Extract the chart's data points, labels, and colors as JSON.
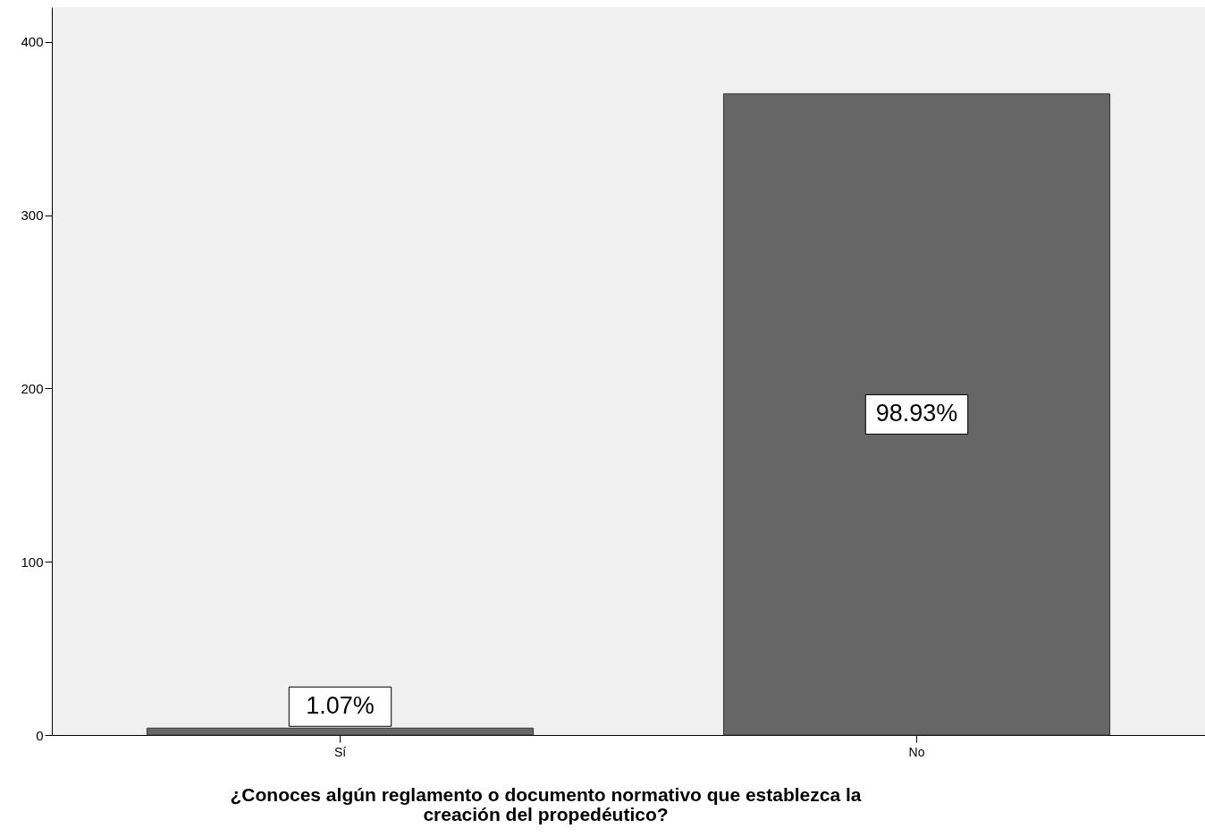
{
  "chart_data": {
    "type": "bar",
    "xlabel": "¿Conoces algún reglamento o documento normativo que establezca la\ncreación del propedéutico?",
    "categories": [
      "Sí",
      "No"
    ],
    "values": [
      4,
      370
    ],
    "annotations": [
      "1.07%",
      "98.93%"
    ],
    "color": "#666666",
    "ylim": [
      0,
      420
    ],
    "yticks": [
      0,
      100,
      200,
      300,
      400
    ],
    "grid": false
  }
}
